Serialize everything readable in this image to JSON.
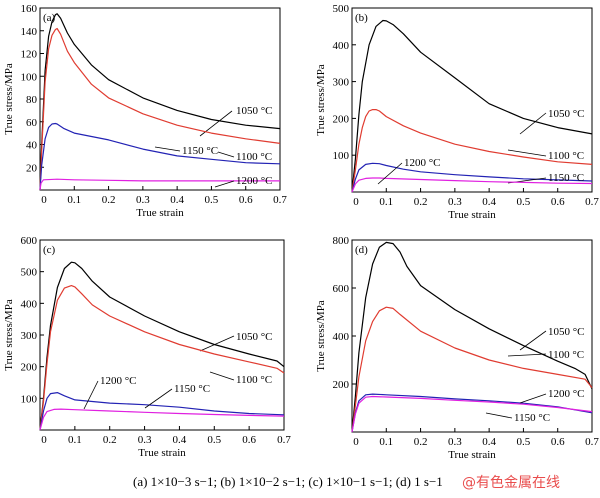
{
  "caption": "(a) 1×10−3 s−1; (b) 1×10−2 s−1; (c) 1×10−1 s−1; (d) 1 s−1",
  "watermark": "@有色金属在线",
  "colors": {
    "black": "#000000",
    "red": "#e03c31",
    "blue": "#2323b4",
    "magenta": "#e020e0"
  },
  "chart_data": [
    {
      "type": "line",
      "panel_label": "(a)",
      "xlabel": "True strain",
      "ylabel": "True stress/MPa",
      "xlim": [
        0,
        0.7
      ],
      "ylim": [
        0,
        160
      ],
      "xticks": [
        0.1,
        0.2,
        0.3,
        0.4,
        0.5,
        0.6,
        0.7
      ],
      "yticks": [
        20,
        40,
        60,
        80,
        100,
        120,
        140,
        160
      ],
      "series": [
        {
          "name": "1050 °C",
          "color": "#000000",
          "x": [
            0,
            0.005,
            0.015,
            0.025,
            0.035,
            0.045,
            0.05,
            0.06,
            0.08,
            0.1,
            0.15,
            0.2,
            0.3,
            0.4,
            0.5,
            0.6,
            0.7
          ],
          "y": [
            0,
            40,
            105,
            135,
            148,
            154,
            155,
            151,
            138,
            128,
            110,
            97,
            81,
            70,
            62,
            57,
            54
          ]
        },
        {
          "name": "1100 °C",
          "color": "#e03c31",
          "x": [
            0,
            0.005,
            0.015,
            0.025,
            0.035,
            0.045,
            0.05,
            0.06,
            0.08,
            0.1,
            0.15,
            0.2,
            0.3,
            0.4,
            0.5,
            0.6,
            0.7
          ],
          "y": [
            0,
            35,
            95,
            124,
            136,
            141,
            142,
            137,
            122,
            112,
            93,
            81,
            67,
            57,
            50,
            45,
            41
          ]
        },
        {
          "name": "1150 °C",
          "color": "#2323b4",
          "x": [
            0,
            0.005,
            0.015,
            0.025,
            0.035,
            0.045,
            0.05,
            0.07,
            0.1,
            0.2,
            0.3,
            0.4,
            0.5,
            0.6,
            0.7
          ],
          "y": [
            0,
            22,
            45,
            55,
            58,
            58.5,
            58,
            54,
            50,
            44,
            36,
            30,
            27,
            24,
            23
          ]
        },
        {
          "name": "1200 °C",
          "color": "#e020e0",
          "x": [
            0,
            0.003,
            0.01,
            0.05,
            0.1,
            0.2,
            0.3,
            0.4,
            0.5,
            0.6,
            0.7
          ],
          "y": [
            0,
            6,
            9,
            9.5,
            9,
            8.5,
            8,
            8,
            8,
            8,
            8
          ]
        }
      ]
    },
    {
      "type": "line",
      "panel_label": "(b)",
      "xlabel": "True strain",
      "ylabel": "True stress/MPa",
      "xlim": [
        0,
        0.7
      ],
      "ylim": [
        0,
        500
      ],
      "xticks": [
        0.1,
        0.2,
        0.3,
        0.4,
        0.5,
        0.6,
        0.7
      ],
      "yticks": [
        100,
        200,
        300,
        400,
        500
      ],
      "series": [
        {
          "name": "1050 °C",
          "color": "#000000",
          "x": [
            0,
            0.01,
            0.02,
            0.03,
            0.05,
            0.07,
            0.09,
            0.1,
            0.12,
            0.15,
            0.2,
            0.3,
            0.4,
            0.5,
            0.6,
            0.7
          ],
          "y": [
            0,
            90,
            210,
            300,
            400,
            450,
            466,
            465,
            455,
            430,
            380,
            310,
            240,
            200,
            175,
            158
          ]
        },
        {
          "name": "1100 °C",
          "color": "#e03c31",
          "x": [
            0,
            0.01,
            0.02,
            0.03,
            0.04,
            0.05,
            0.06,
            0.07,
            0.08,
            0.1,
            0.15,
            0.2,
            0.3,
            0.4,
            0.5,
            0.6,
            0.7
          ],
          "y": [
            0,
            60,
            130,
            175,
            205,
            220,
            224,
            224,
            220,
            205,
            180,
            160,
            130,
            110,
            95,
            82,
            75
          ]
        },
        {
          "name": "1150 °C",
          "color": "#2323b4",
          "x": [
            0,
            0.01,
            0.02,
            0.04,
            0.06,
            0.08,
            0.1,
            0.15,
            0.2,
            0.3,
            0.4,
            0.5,
            0.6,
            0.7
          ],
          "y": [
            0,
            35,
            60,
            75,
            78,
            77,
            72,
            62,
            55,
            47,
            41,
            36,
            33,
            30
          ]
        },
        {
          "name": "1200 °C",
          "color": "#e020e0",
          "x": [
            0,
            0.01,
            0.02,
            0.04,
            0.06,
            0.08,
            0.1,
            0.2,
            0.3,
            0.4,
            0.5,
            0.6,
            0.7
          ],
          "y": [
            0,
            22,
            32,
            37,
            38,
            38,
            37,
            34,
            31,
            28,
            26,
            24,
            23
          ]
        }
      ]
    },
    {
      "type": "line",
      "panel_label": "(c)",
      "xlabel": "True strain",
      "ylabel": "True stress/MPa",
      "xlim": [
        0,
        0.7
      ],
      "ylim": [
        0,
        600
      ],
      "xticks": [
        0.1,
        0.2,
        0.3,
        0.4,
        0.5,
        0.6,
        0.7
      ],
      "yticks": [
        100,
        200,
        300,
        400,
        500,
        600
      ],
      "series": [
        {
          "name": "1050 °C",
          "color": "#000000",
          "x": [
            0,
            0.01,
            0.02,
            0.03,
            0.05,
            0.07,
            0.09,
            0.1,
            0.12,
            0.15,
            0.2,
            0.3,
            0.4,
            0.5,
            0.6,
            0.68,
            0.7
          ],
          "y": [
            0,
            100,
            230,
            330,
            450,
            510,
            530,
            528,
            510,
            470,
            420,
            360,
            310,
            270,
            240,
            218,
            200
          ]
        },
        {
          "name": "1100 °C",
          "color": "#e03c31",
          "x": [
            0,
            0.01,
            0.02,
            0.03,
            0.05,
            0.07,
            0.09,
            0.1,
            0.12,
            0.15,
            0.2,
            0.3,
            0.4,
            0.5,
            0.6,
            0.68,
            0.7
          ],
          "y": [
            0,
            90,
            210,
            310,
            410,
            448,
            456,
            452,
            430,
            395,
            360,
            310,
            270,
            240,
            215,
            195,
            180
          ]
        },
        {
          "name": "1200 °C",
          "color": "#2323b4",
          "x": [
            0,
            0.01,
            0.02,
            0.03,
            0.05,
            0.07,
            0.1,
            0.2,
            0.3,
            0.4,
            0.5,
            0.6,
            0.7
          ],
          "y": [
            0,
            60,
            100,
            115,
            118,
            108,
            95,
            85,
            80,
            72,
            60,
            52,
            48
          ]
        },
        {
          "name": "1150 °C",
          "color": "#e020e0",
          "x": [
            0,
            0.01,
            0.02,
            0.04,
            0.06,
            0.1,
            0.2,
            0.3,
            0.4,
            0.5,
            0.6,
            0.7
          ],
          "y": [
            0,
            40,
            58,
            65,
            66,
            64,
            60,
            56,
            52,
            49,
            46,
            44
          ]
        }
      ]
    },
    {
      "type": "line",
      "panel_label": "(d)",
      "xlabel": "True strain",
      "ylabel": "True stress/MPa",
      "xlim": [
        0,
        0.7
      ],
      "ylim": [
        0,
        800
      ],
      "xticks": [
        0.1,
        0.2,
        0.3,
        0.4,
        0.5,
        0.6,
        0.7
      ],
      "yticks": [
        200,
        400,
        600,
        800
      ],
      "series": [
        {
          "name": "1050 °C",
          "color": "#000000",
          "x": [
            0,
            0.01,
            0.02,
            0.04,
            0.06,
            0.08,
            0.1,
            0.12,
            0.14,
            0.16,
            0.2,
            0.3,
            0.4,
            0.5,
            0.6,
            0.65,
            0.68,
            0.7
          ],
          "y": [
            0,
            150,
            330,
            560,
            700,
            770,
            790,
            785,
            750,
            690,
            610,
            510,
            430,
            360,
            295,
            265,
            240,
            180
          ]
        },
        {
          "name": "1100 °C",
          "color": "#e03c31",
          "x": [
            0,
            0.01,
            0.02,
            0.04,
            0.06,
            0.08,
            0.1,
            0.12,
            0.14,
            0.2,
            0.3,
            0.4,
            0.5,
            0.6,
            0.68,
            0.7
          ],
          "y": [
            0,
            110,
            230,
            380,
            460,
            505,
            520,
            515,
            490,
            420,
            350,
            300,
            265,
            240,
            220,
            185
          ]
        },
        {
          "name": "1200 °C",
          "color": "#2323b4",
          "x": [
            0,
            0.01,
            0.02,
            0.04,
            0.06,
            0.1,
            0.2,
            0.3,
            0.4,
            0.5,
            0.6,
            0.7
          ],
          "y": [
            0,
            80,
            130,
            155,
            158,
            155,
            148,
            138,
            130,
            120,
            105,
            80
          ]
        },
        {
          "name": "1150 °C",
          "color": "#e020e0",
          "x": [
            0,
            0.01,
            0.02,
            0.04,
            0.06,
            0.1,
            0.2,
            0.3,
            0.4,
            0.5,
            0.6,
            0.7
          ],
          "y": [
            0,
            75,
            120,
            145,
            148,
            146,
            140,
            132,
            125,
            116,
            102,
            85
          ]
        }
      ]
    }
  ]
}
